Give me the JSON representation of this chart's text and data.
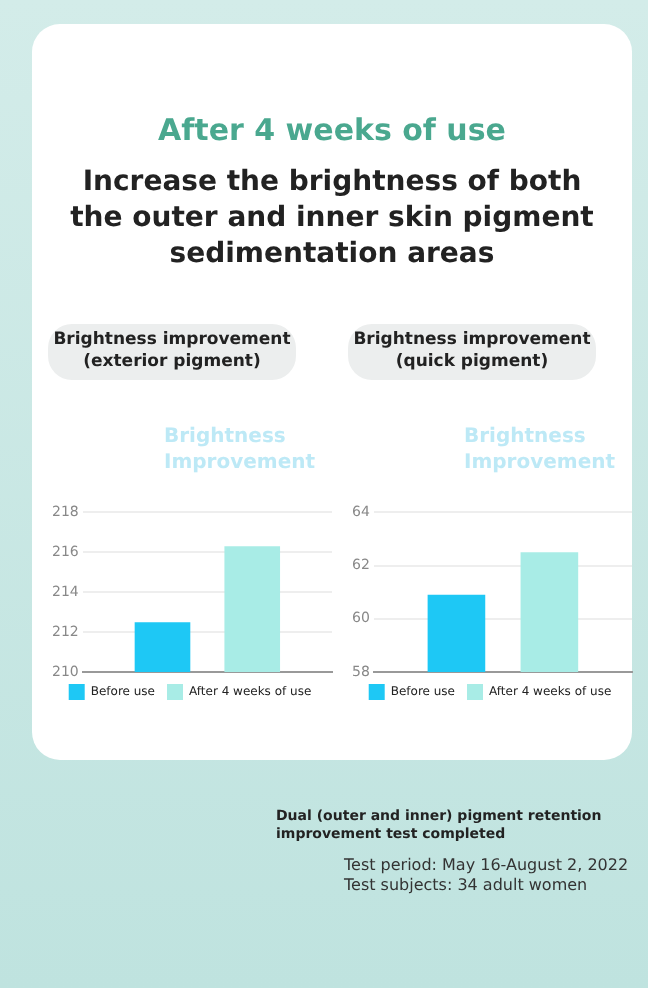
{
  "chart_data": [
    {
      "type": "other",
      "title": "After 4 weeks of use",
      "subtitle": "Increase the brightness of both the outer and inner skin pigment sedimentation areas",
      "annotations": [
        "Dual (outer and inner) pigment retention improvement test completed",
        "Test period: May 16-August 2, 2022",
        "Test subjects: 34 adult women"
      ]
    },
    {
      "type": "bar",
      "title": "Brightness improvement (exterior pigment)",
      "annotations": [
        "Brightness Improvement"
      ],
      "categories": [
        null
      ],
      "series": [
        {
          "name": "Before use",
          "color": "#1ec8f5",
          "values": [
            212.5
          ]
        },
        {
          "name": "After 4 weeks of use",
          "color": "#a8ece6",
          "values": [
            216.3
          ]
        }
      ],
      "ylim": [
        210,
        218
      ],
      "yticks": [
        210,
        212,
        214,
        216,
        218
      ],
      "grid": "y",
      "legend": "bottom",
      "tick_labels": "y"
    },
    {
      "type": "bar",
      "title": "Brightness improvement (quick pigment)",
      "annotations": [
        "Brightness Improvement"
      ],
      "categories": [
        null
      ],
      "series": [
        {
          "name": "Before use",
          "color": "#1ec8f5",
          "values": [
            60.9
          ]
        },
        {
          "name": "After 4 weeks of use",
          "color": "#a8ece6",
          "values": [
            62.5
          ]
        }
      ],
      "ylim": [
        58,
        64
      ],
      "yticks": [
        58,
        60,
        62,
        64
      ],
      "grid": "y",
      "legend": "bottom",
      "tick_labels": "y"
    }
  ]
}
